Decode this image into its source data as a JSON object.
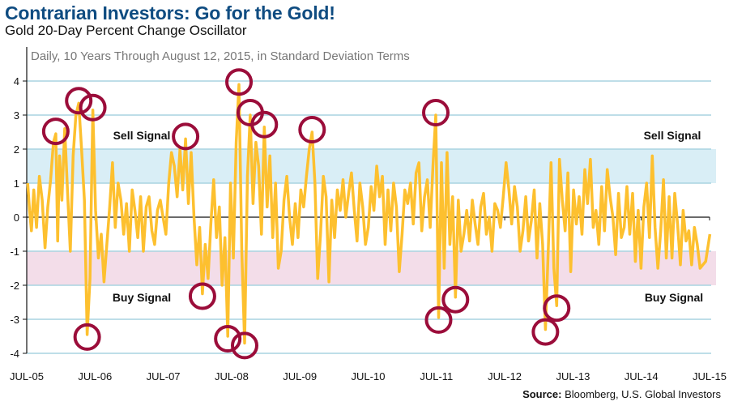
{
  "header": {
    "title": "Contrarian Investors: Go for the Gold!",
    "subtitle": "Gold 20-Day Percent Change Oscillator"
  },
  "source": {
    "label": "Source:",
    "text": " Bloomberg, U.S. Global Investors"
  },
  "colors": {
    "line": "#fdc02f",
    "circle": "#9b0d3a",
    "sell_band": "#d9eef6",
    "buy_band": "#f3dde9",
    "grid": "#a9d4e0",
    "title": "#0f4c81"
  },
  "chart_data": {
    "type": "line",
    "title": "Gold 20-Day Percent Change Oscillator",
    "caption": "Daily, 10 Years Through August 12, 2015, in Standard Deviation Terms",
    "ylim": [
      -4,
      4
    ],
    "yticks": [
      "4",
      "3",
      "2",
      "1",
      "0",
      "-1",
      "-2",
      "-3",
      "-4"
    ],
    "xticks": [
      "JUL-05",
      "JUL-06",
      "JUL-07",
      "JUL-08",
      "JUL-09",
      "JUL-10",
      "JUL-11",
      "JUL-12",
      "JUL-13",
      "JUL-14",
      "JUL-15"
    ],
    "grid": true,
    "bands": [
      {
        "label": "Sell Signal",
        "from": 1,
        "to": 2
      },
      {
        "label": "Buy Signal",
        "from": -2,
        "to": -1
      }
    ],
    "monthly_values": {
      "2005-07": [
        1.0,
        0.2,
        -0.4
      ],
      "2005-08": [
        0.8,
        -0.3
      ],
      "2005-09": [
        1.2,
        0.5
      ],
      "2005-10": [
        -0.9,
        0.3
      ],
      "2005-11": [
        1.1,
        2.2
      ],
      "2005-12": [
        2.45,
        -0.7,
        1.8
      ],
      "2006-01": [
        0.5,
        2.6
      ],
      "2006-02": [
        0.8,
        -1.0
      ],
      "2006-03": [
        1.8,
        3.0
      ],
      "2006-04": [
        3.35,
        2.0
      ],
      "2006-05": [
        0.5,
        -3.45
      ],
      "2006-06": [
        -1.8,
        3.15
      ],
      "2006-07": [
        0.2,
        -1.2
      ],
      "2006-08": [
        -0.5,
        -1.9
      ],
      "2006-09": [
        -0.8,
        0.3
      ],
      "2006-10": [
        1.6,
        -0.3
      ],
      "2006-11": [
        1.0,
        0.5
      ],
      "2006-12": [
        -0.5,
        0.4
      ],
      "2007-01": [
        -1.0,
        0.8
      ],
      "2007-02": [
        0.2,
        -0.6
      ],
      "2007-03": [
        0.6,
        -1.0
      ],
      "2007-04": [
        0.3,
        0.6
      ],
      "2007-05": [
        -0.4,
        -0.8
      ],
      "2007-06": [
        0.2,
        0.5
      ],
      "2007-07": [
        0.0,
        -0.5
      ],
      "2007-08": [
        1.0,
        1.9
      ],
      "2007-09": [
        1.5,
        0.6
      ],
      "2007-10": [
        2.0,
        0.8
      ],
      "2007-11": [
        2.3,
        0.4
      ],
      "2007-12": [
        1.9,
        0.0
      ],
      "2008-01": [
        -1.4,
        -0.3
      ],
      "2008-02": [
        -2.25,
        -0.8
      ],
      "2008-03": [
        -1.8,
        -0.2
      ],
      "2008-04": [
        1.1,
        -0.6
      ],
      "2008-05": [
        0.3,
        -2.0
      ],
      "2008-06": [
        -0.6,
        -3.5
      ],
      "2008-07": [
        1.0,
        -1.2
      ],
      "2008-08": [
        2.2,
        3.9
      ],
      "2008-09": [
        -1.0,
        -3.7
      ],
      "2008-10": [
        1.2,
        3.0
      ],
      "2008-11": [
        0.4,
        2.2
      ],
      "2008-12": [
        1.5,
        -0.5
      ],
      "2009-01": [
        2.65,
        0.3
      ],
      "2009-02": [
        1.8,
        -0.6
      ],
      "2009-03": [
        1.0,
        -1.5
      ],
      "2009-04": [
        -1.0,
        0.5
      ],
      "2009-05": [
        1.2,
        0.0
      ],
      "2009-06": [
        -0.8,
        0.4
      ],
      "2009-07": [
        -0.6,
        0.8
      ],
      "2009-08": [
        0.3,
        1.2
      ],
      "2009-09": [
        2.0,
        2.5
      ],
      "2009-10": [
        1.0,
        -1.8
      ],
      "2009-11": [
        -0.5,
        1.2
      ],
      "2009-12": [
        0.6,
        -1.9
      ],
      "2010-01": [
        0.5,
        -0.6
      ],
      "2010-02": [
        0.8,
        0.2
      ],
      "2010-03": [
        1.1,
        0.0
      ],
      "2010-04": [
        0.7,
        1.3
      ],
      "2010-05": [
        0.2,
        -0.7
      ],
      "2010-06": [
        1.0,
        0.3
      ],
      "2010-07": [
        -0.8,
        -0.3
      ],
      "2010-08": [
        0.9,
        0.2
      ],
      "2010-09": [
        1.5,
        0.6
      ],
      "2010-10": [
        1.2,
        -0.8
      ],
      "2010-11": [
        0.8,
        -0.4
      ],
      "2010-12": [
        1.0,
        0.3
      ],
      "2011-01": [
        -1.6,
        -0.5
      ],
      "2011-02": [
        0.8,
        0.4
      ],
      "2011-03": [
        1.0,
        -0.2
      ],
      "2011-04": [
        1.3,
        1.6
      ],
      "2011-05": [
        -0.4,
        0.6
      ],
      "2011-06": [
        1.1,
        -0.3
      ],
      "2011-07": [
        1.5,
        3.0
      ],
      "2011-08": [
        -2.95,
        1.6
      ],
      "2011-09": [
        -1.5,
        1.9
      ],
      "2011-10": [
        -0.8,
        0.6
      ],
      "2011-11": [
        -2.35,
        0.5
      ],
      "2011-12": [
        -1.0,
        -0.5
      ],
      "2012-01": [
        0.2,
        -0.7
      ],
      "2012-02": [
        0.5,
        -0.2
      ],
      "2012-03": [
        -0.8,
        0.3
      ],
      "2012-04": [
        0.7,
        -0.5
      ],
      "2012-05": [
        0.0,
        -1.0
      ],
      "2012-06": [
        0.4,
        0.2
      ],
      "2012-07": [
        -0.3,
        0.6
      ],
      "2012-08": [
        1.6,
        0.8
      ],
      "2012-09": [
        -0.2,
        0.9
      ],
      "2012-10": [
        0.3,
        -1.0
      ],
      "2012-11": [
        -0.4,
        0.6
      ],
      "2012-12": [
        -0.7,
        -0.1
      ],
      "2013-01": [
        0.8,
        -1.2
      ],
      "2013-02": [
        0.4,
        -0.8
      ],
      "2013-03": [
        -3.3,
        -1.0
      ],
      "2013-04": [
        1.6,
        -1.5
      ],
      "2013-05": [
        -2.6,
        1.7
      ],
      "2013-06": [
        0.5,
        -0.4
      ],
      "2013-07": [
        1.3,
        -1.6
      ],
      "2013-08": [
        0.8,
        -0.2
      ],
      "2013-09": [
        0.6,
        -0.5
      ],
      "2013-10": [
        1.4,
        0.4
      ],
      "2013-11": [
        1.7,
        -0.3
      ],
      "2013-12": [
        0.2,
        -0.8
      ],
      "2014-01": [
        0.9,
        -0.4
      ],
      "2014-02": [
        1.4,
        0.6
      ],
      "2014-03": [
        0.0,
        -1.1
      ],
      "2014-04": [
        0.7,
        -0.6
      ],
      "2014-05": [
        -0.3,
        0.9
      ],
      "2014-06": [
        -0.5,
        0.7
      ],
      "2014-07": [
        -1.3,
        0.2
      ],
      "2014-08": [
        -1.5,
        0.3
      ],
      "2014-09": [
        1.0,
        -0.6
      ],
      "2014-10": [
        1.8,
        -0.3
      ],
      "2014-11": [
        -1.5,
        -0.4
      ],
      "2014-12": [
        1.1,
        -1.2
      ],
      "2015-01": [
        0.6,
        -1.2
      ],
      "2015-02": [
        0.7,
        -0.2
      ],
      "2015-03": [
        -1.4,
        0.2
      ],
      "2015-04": [
        -0.7,
        -0.4
      ],
      "2015-05": [
        -1.4,
        -0.3
      ],
      "2015-06": [
        -0.8,
        -1.5
      ],
      "2015-07": [
        -1.4,
        -1.3
      ],
      "2015-08": [
        -0.5
      ]
    },
    "circled_extremes": [
      {
        "date": "2005-12",
        "value": 2.45
      },
      {
        "date": "2006-04",
        "value": 3.35
      },
      {
        "date": "2006-05",
        "value": -3.45
      },
      {
        "date": "2006-06",
        "value": 3.15
      },
      {
        "date": "2007-11",
        "value": 2.3
      },
      {
        "date": "2008-02",
        "value": -2.25
      },
      {
        "date": "2008-06",
        "value": -3.5
      },
      {
        "date": "2008-08",
        "value": 3.9
      },
      {
        "date": "2008-09",
        "value": -3.7
      },
      {
        "date": "2008-10",
        "value": 3.0
      },
      {
        "date": "2009-01",
        "value": 2.65
      },
      {
        "date": "2009-09",
        "value": 2.5
      },
      {
        "date": "2011-07",
        "value": 3.0
      },
      {
        "date": "2011-08",
        "value": -2.95
      },
      {
        "date": "2011-11",
        "value": -2.35
      },
      {
        "date": "2013-03",
        "value": -3.3
      },
      {
        "date": "2013-05",
        "value": -2.6
      }
    ]
  }
}
